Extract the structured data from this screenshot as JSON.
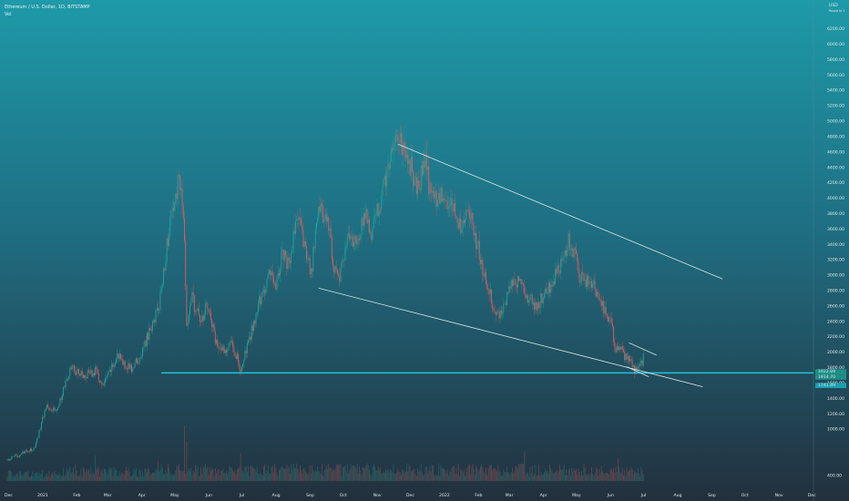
{
  "header": {
    "symbol_line": "Ethereum / U.S. Dollar, 1D, BITSTAMP",
    "indicator": "Vol"
  },
  "price_scale": {
    "currency": "USD",
    "sub": "Round to 1"
  },
  "price_labels": {
    "p1": "1922.89",
    "p2": "1914.70",
    "p3": "1741.49"
  },
  "chart_data": {
    "type": "candlestick",
    "title": "",
    "yticks": [
      {
        "v": 400,
        "t": "400.00"
      },
      {
        "v": 1000,
        "t": "1000.00"
      },
      {
        "v": 1200,
        "t": "1200.00"
      },
      {
        "v": 1400,
        "t": "1400.00"
      },
      {
        "v": 1600,
        "t": "1600.00"
      },
      {
        "v": 1800,
        "t": "1800.00"
      },
      {
        "v": 2000,
        "t": "2000.00"
      },
      {
        "v": 2200,
        "t": "2200.00"
      },
      {
        "v": 2400,
        "t": "2400.00"
      },
      {
        "v": 2600,
        "t": "2600.00"
      },
      {
        "v": 2800,
        "t": "2800.00"
      },
      {
        "v": 3000,
        "t": "3000.00"
      },
      {
        "v": 3200,
        "t": "3200.00"
      },
      {
        "v": 3400,
        "t": "3400.00"
      },
      {
        "v": 3600,
        "t": "3600.00"
      },
      {
        "v": 3800,
        "t": "3800.00"
      },
      {
        "v": 4000,
        "t": "4000.00"
      },
      {
        "v": 4200,
        "t": "4200.00"
      },
      {
        "v": 4400,
        "t": "4400.00"
      },
      {
        "v": 4600,
        "t": "4600.00"
      },
      {
        "v": 4800,
        "t": "4800.00"
      },
      {
        "v": 5000,
        "t": "5000.00"
      },
      {
        "v": 5200,
        "t": "5200.00"
      },
      {
        "v": 5400,
        "t": "5400.00"
      },
      {
        "v": 5600,
        "t": "5600.00"
      },
      {
        "v": 5800,
        "t": "5800.00"
      },
      {
        "v": 6000,
        "t": "6000.00"
      },
      {
        "v": 6200,
        "t": "6200.00"
      }
    ],
    "xticks": [
      "Dec",
      "2021",
      "Feb",
      "Mar",
      "Apr",
      "May",
      "Jun",
      "Jul",
      "Aug",
      "Sep",
      "Oct",
      "Nov",
      "Dec",
      "2022",
      "Feb",
      "Mar",
      "Apr",
      "May",
      "Jun",
      "Jul",
      "Aug",
      "Sep",
      "Oct",
      "Nov",
      "Dec"
    ],
    "price_anchors": [
      [
        0,
        600
      ],
      [
        25,
        750
      ],
      [
        35,
        1300
      ],
      [
        45,
        1250
      ],
      [
        58,
        1800
      ],
      [
        69,
        1700
      ],
      [
        80,
        1750
      ],
      [
        87,
        1550
      ],
      [
        100,
        1950
      ],
      [
        112,
        1780
      ],
      [
        120,
        1900
      ],
      [
        130,
        2300
      ],
      [
        138,
        2600
      ],
      [
        146,
        3500
      ],
      [
        156,
        4250
      ],
      [
        160,
        3800
      ],
      [
        163,
        2400
      ],
      [
        168,
        2700
      ],
      [
        175,
        2400
      ],
      [
        182,
        2600
      ],
      [
        190,
        2100
      ],
      [
        198,
        2000
      ],
      [
        203,
        2200
      ],
      [
        212,
        1780
      ],
      [
        218,
        2050
      ],
      [
        228,
        2600
      ],
      [
        238,
        3000
      ],
      [
        244,
        2900
      ],
      [
        250,
        3300
      ],
      [
        256,
        3100
      ],
      [
        264,
        3800
      ],
      [
        269,
        3400
      ],
      [
        276,
        3000
      ],
      [
        283,
        3900
      ],
      [
        291,
        3700
      ],
      [
        297,
        3100
      ],
      [
        302,
        3000
      ],
      [
        310,
        3500
      ],
      [
        316,
        3400
      ],
      [
        325,
        3800
      ],
      [
        330,
        3500
      ],
      [
        338,
        3900
      ],
      [
        350,
        4600
      ],
      [
        355,
        4800
      ],
      [
        365,
        4500
      ],
      [
        372,
        4100
      ],
      [
        380,
        4450
      ],
      [
        385,
        4000
      ],
      [
        395,
        4000
      ],
      [
        403,
        3900
      ],
      [
        412,
        3650
      ],
      [
        420,
        3800
      ],
      [
        432,
        3100
      ],
      [
        440,
        2700
      ],
      [
        445,
        2450
      ],
      [
        455,
        2750
      ],
      [
        460,
        3000
      ],
      [
        465,
        2900
      ],
      [
        470,
        2800
      ],
      [
        475,
        2700
      ],
      [
        482,
        2600
      ],
      [
        495,
        2900
      ],
      [
        505,
        3200
      ],
      [
        510,
        3450
      ],
      [
        515,
        3300
      ],
      [
        520,
        3000
      ],
      [
        525,
        2950
      ],
      [
        530,
        2900
      ],
      [
        535,
        2800
      ],
      [
        540,
        2650
      ],
      [
        545,
        2500
      ],
      [
        550,
        2400
      ],
      [
        552,
        2000
      ],
      [
        557,
        2050
      ],
      [
        560,
        1950
      ],
      [
        564,
        1960
      ],
      [
        568,
        1800
      ],
      [
        571,
        1750
      ],
      [
        575,
        1800
      ],
      [
        578,
        1920
      ]
    ],
    "volume_spike_days": [
      {
        "day": 62,
        "mult": 2.2
      },
      {
        "day": 80,
        "mult": 1.8
      },
      {
        "day": 137,
        "mult": 2.5
      },
      {
        "day": 161,
        "mult": 3.5
      },
      {
        "day": 163,
        "mult": 4.2
      },
      {
        "day": 171,
        "mult": 2.4
      },
      {
        "day": 212,
        "mult": 2.1
      },
      {
        "day": 360,
        "mult": 1.6
      },
      {
        "day": 470,
        "mult": 2.0
      },
      {
        "day": 555,
        "mult": 2.8
      },
      {
        "day": 563,
        "mult": 3.0
      }
    ],
    "trendlines": [
      {
        "name": "upper-resistance-line",
        "from": [
          355,
          4700
        ],
        "to": [
          650,
          2950
        ]
      },
      {
        "name": "lower-support-line",
        "from": [
          283,
          2830
        ],
        "to": [
          632,
          1550
        ]
      },
      {
        "name": "small-channel-upper",
        "from": [
          565,
          2120
        ],
        "to": [
          590,
          1960
        ]
      },
      {
        "name": "small-channel-lower",
        "from": [
          563,
          1810
        ],
        "to": [
          583,
          1680
        ]
      }
    ],
    "horizontal_level": {
      "value": 1730,
      "from_day": 140
    },
    "ylim": [
      300,
      6300
    ],
    "day_range": [
      0,
      760
    ]
  },
  "colors": {
    "bg_top": "#1e9aa8",
    "bg_mid": "#1f6f83",
    "bg_bottom": "#22303d",
    "up": "#1fa59a",
    "down": "#e25a5d",
    "trend": "#e8f4f6",
    "level": "#23c3d4",
    "label_green": "#1e8f87",
    "label_teal": "#1ba0b2"
  }
}
